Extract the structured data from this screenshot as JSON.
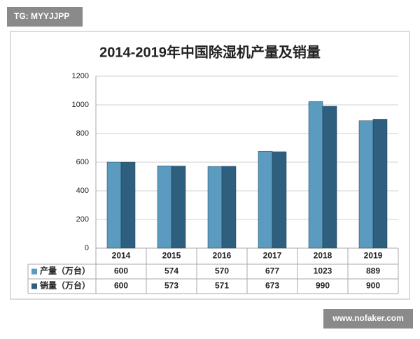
{
  "chart_data": {
    "type": "bar",
    "title": "2014-2019年中国除湿机产量及销量",
    "categories": [
      "2014",
      "2015",
      "2016",
      "2017",
      "2018",
      "2019"
    ],
    "series": [
      {
        "name": "产量（万台）",
        "color": "#5a9bbf",
        "values": [
          600,
          574,
          570,
          677,
          1023,
          889
        ]
      },
      {
        "name": "销量（万台）",
        "color": "#2f5f7e",
        "values": [
          600,
          573,
          571,
          673,
          990,
          900
        ]
      }
    ],
    "ylim": [
      0,
      1200
    ],
    "yticks": [
      0,
      200,
      400,
      600,
      800,
      1000,
      1200
    ],
    "grid": true
  },
  "watermarks": [
    "TG: MYYJJPP",
    "www.nofaker.com"
  ]
}
